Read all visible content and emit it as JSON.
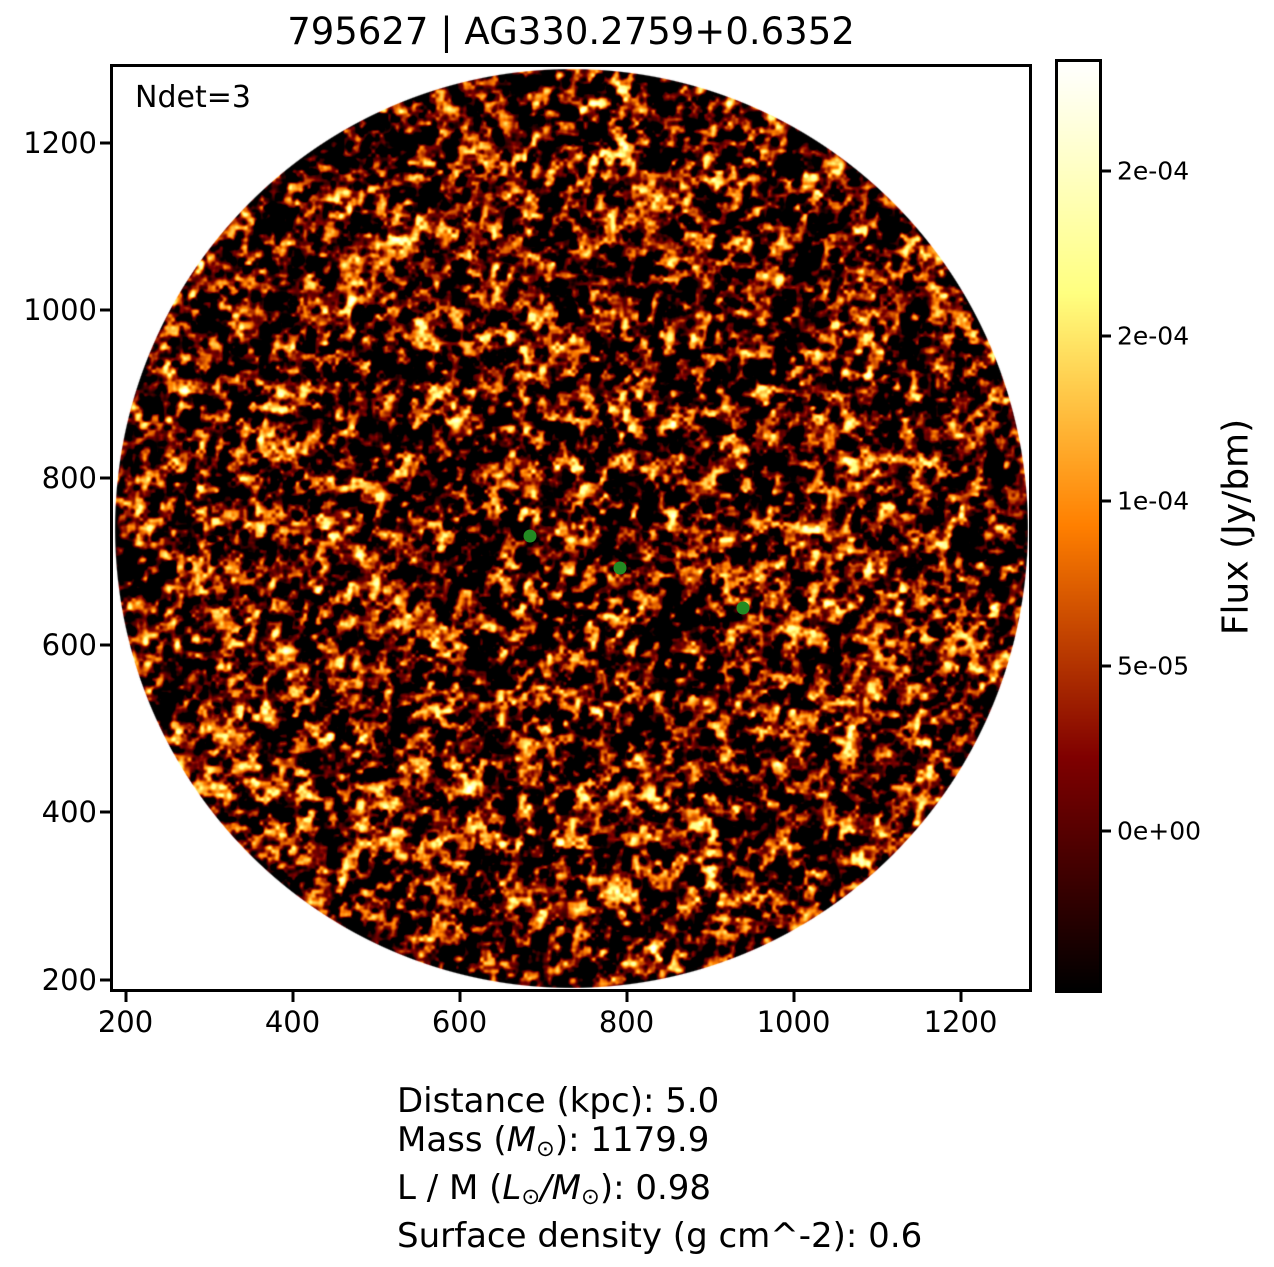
{
  "figure": {
    "background": "#ffffff"
  },
  "chart_data": {
    "type": "heatmap",
    "title": "795627 | AG330.2759+0.6352",
    "annotation": "Ndet=3",
    "colormap": "afmhot",
    "field_shape": "circle",
    "axes": {
      "xlim": [
        185,
        1282
      ],
      "ylim": [
        189,
        1291
      ],
      "xticks": [
        200,
        400,
        600,
        800,
        1000,
        1200
      ],
      "yticks": [
        200,
        400,
        600,
        800,
        1000,
        1200
      ]
    },
    "detections": {
      "count": 3,
      "marker_color": "#228B22",
      "points": [
        {
          "x": 684,
          "y": 730
        },
        {
          "x": 792,
          "y": 692
        },
        {
          "x": 940,
          "y": 644
        }
      ]
    },
    "colorbar": {
      "label": "Flux (Jy/bm)",
      "vmin": -4.8e-05,
      "vmax": 0.000233,
      "ticks": [
        {
          "value": 0.0002,
          "label": "2e-04"
        },
        {
          "value": 0.00015,
          "label": "2e-04"
        },
        {
          "value": 0.0001,
          "label": "1e-04"
        },
        {
          "value": 5e-05,
          "label": "5e-05"
        },
        {
          "value": 0.0,
          "label": "0e+00"
        }
      ]
    },
    "info_lines": [
      {
        "segments": [
          {
            "t": "Distance (kpc): 5.0"
          }
        ]
      },
      {
        "segments": [
          {
            "t": "Mass ("
          },
          {
            "t": "M",
            "s": "i"
          },
          {
            "t": "⊙",
            "s": "sub"
          },
          {
            "t": "): 1179.9"
          }
        ]
      },
      {
        "segments": [
          {
            "t": "L / M ("
          },
          {
            "t": "L",
            "s": "i"
          },
          {
            "t": "⊙",
            "s": "sub"
          },
          {
            "t": "/",
            "s": "i"
          },
          {
            "t": "M",
            "s": "i"
          },
          {
            "t": "⊙",
            "s": "sub"
          },
          {
            "t": "): 0.98"
          }
        ]
      },
      {
        "segments": [
          {
            "t": "Surface density (g cm^-2): 0.6"
          }
        ]
      }
    ]
  }
}
